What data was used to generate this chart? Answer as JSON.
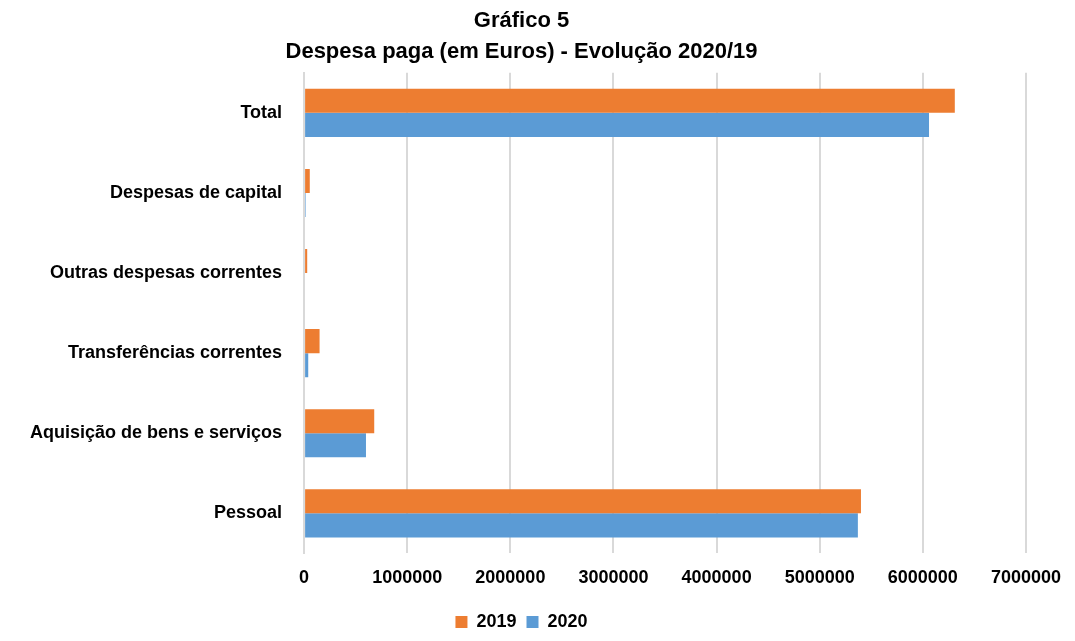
{
  "chart_data": {
    "type": "bar",
    "orientation": "horizontal",
    "title": "Gráfico 5",
    "subtitle": "Despesa paga (em Euros) - Evolução 2020/19",
    "categories": [
      "Total",
      "Despesas de capital",
      "Outras despesas correntes",
      "Transferências correntes",
      "Aquisição de bens e serviços",
      "Pessoal"
    ],
    "series": [
      {
        "name": "2019",
        "color": "#ed7d31",
        "values": [
          6310000,
          55000,
          30000,
          150000,
          680000,
          5400000
        ]
      },
      {
        "name": "2020",
        "color": "#5b9bd5",
        "values": [
          6060000,
          15000,
          0,
          40000,
          600000,
          5370000
        ]
      }
    ],
    "xlim": [
      0,
      7000000
    ],
    "xticks": [
      0,
      1000000,
      2000000,
      3000000,
      4000000,
      5000000,
      6000000,
      7000000
    ],
    "grid": "x",
    "legend": "bottom"
  }
}
